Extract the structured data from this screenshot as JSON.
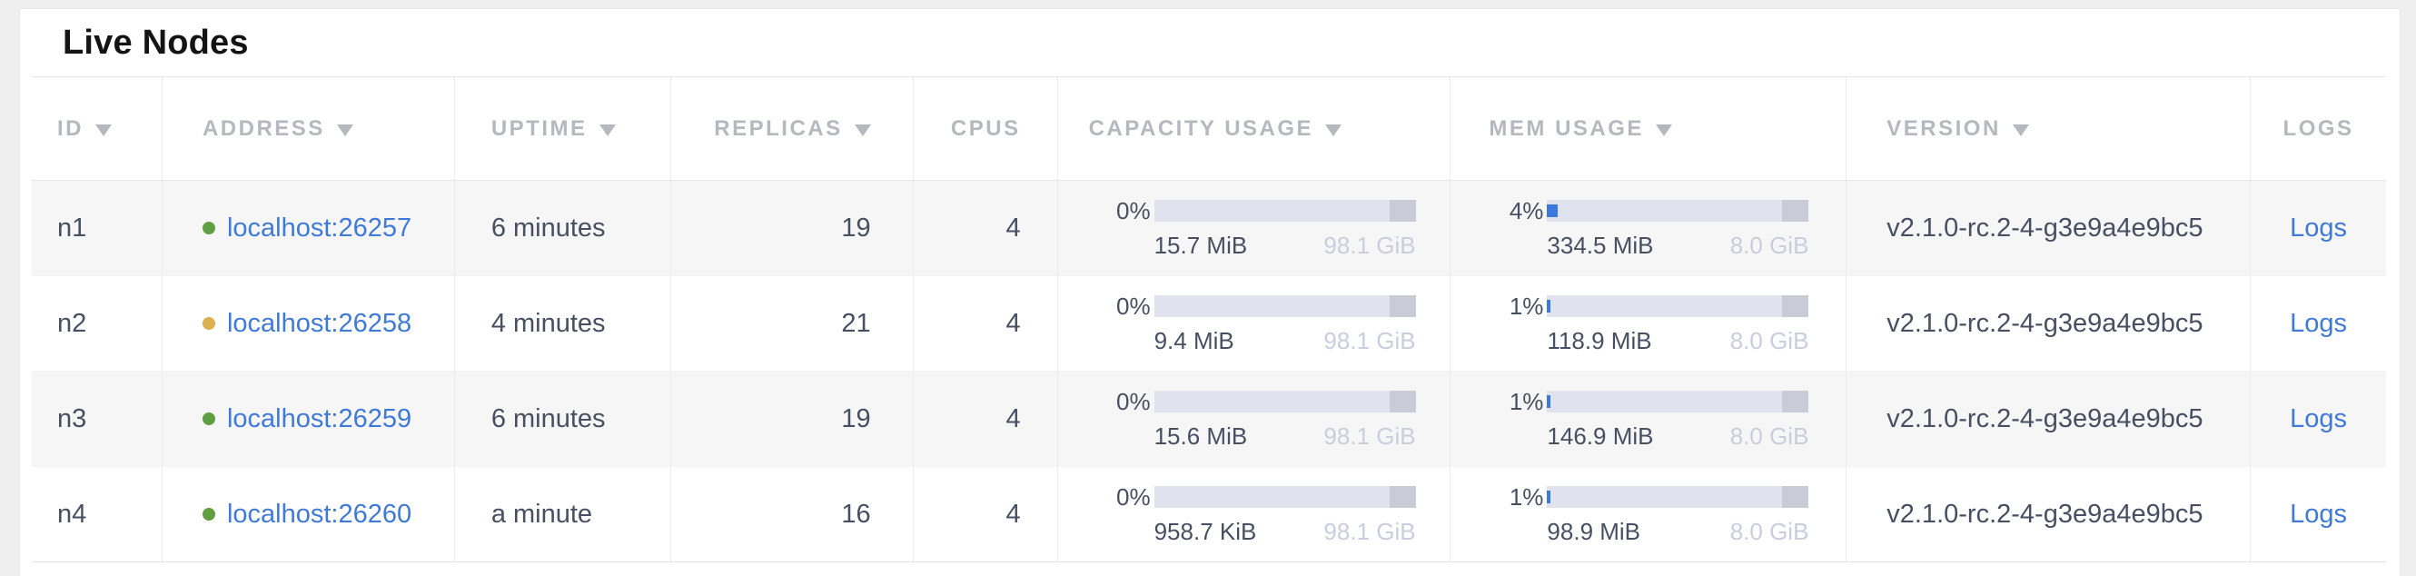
{
  "page": {
    "title": "Live Nodes"
  },
  "colors": {
    "link": "#3f7ad8",
    "status_green": "#5f9e41",
    "status_yellow": "#ddb050",
    "bar_bg": "#e0e3ee",
    "bar_fill": "#3c79dc",
    "bar_reserved": "#c9ccd6",
    "cell_text": "#475062",
    "header_text": "#b5b8bf",
    "total_text": "#c9cede"
  },
  "table": {
    "columns": [
      {
        "key": "id",
        "label": "ID",
        "sortable": true
      },
      {
        "key": "address",
        "label": "ADDRESS",
        "sortable": true
      },
      {
        "key": "uptime",
        "label": "UPTIME",
        "sortable": true
      },
      {
        "key": "replicas",
        "label": "REPLICAS",
        "sortable": true
      },
      {
        "key": "cpus",
        "label": "CPUS",
        "sortable": false
      },
      {
        "key": "capacity",
        "label": "CAPACITY USAGE",
        "sortable": true
      },
      {
        "key": "mem",
        "label": "MEM USAGE",
        "sortable": true
      },
      {
        "key": "version",
        "label": "VERSION",
        "sortable": true
      },
      {
        "key": "logs",
        "label": "LOGS",
        "sortable": false
      }
    ],
    "rows": [
      {
        "id": "n1",
        "status": "green",
        "address": "localhost:26257",
        "uptime": "6 minutes",
        "replicas": "19",
        "cpus": "4",
        "capacity": {
          "percent": "0%",
          "percent_value": 0,
          "used": "15.7 MiB",
          "total": "98.1 GiB"
        },
        "mem": {
          "percent": "4%",
          "percent_value": 4,
          "used": "334.5 MiB",
          "total": "8.0 GiB"
        },
        "version": "v2.1.0-rc.2-4-g3e9a4e9bc5",
        "logs_label": "Logs"
      },
      {
        "id": "n2",
        "status": "yellow",
        "address": "localhost:26258",
        "uptime": "4 minutes",
        "replicas": "21",
        "cpus": "4",
        "capacity": {
          "percent": "0%",
          "percent_value": 0,
          "used": "9.4 MiB",
          "total": "98.1 GiB"
        },
        "mem": {
          "percent": "1%",
          "percent_value": 1,
          "used": "118.9 MiB",
          "total": "8.0 GiB"
        },
        "version": "v2.1.0-rc.2-4-g3e9a4e9bc5",
        "logs_label": "Logs"
      },
      {
        "id": "n3",
        "status": "green",
        "address": "localhost:26259",
        "uptime": "6 minutes",
        "replicas": "19",
        "cpus": "4",
        "capacity": {
          "percent": "0%",
          "percent_value": 0,
          "used": "15.6 MiB",
          "total": "98.1 GiB"
        },
        "mem": {
          "percent": "1%",
          "percent_value": 1,
          "used": "146.9 MiB",
          "total": "8.0 GiB"
        },
        "version": "v2.1.0-rc.2-4-g3e9a4e9bc5",
        "logs_label": "Logs"
      },
      {
        "id": "n4",
        "status": "green",
        "address": "localhost:26260",
        "uptime": "a minute",
        "replicas": "16",
        "cpus": "4",
        "capacity": {
          "percent": "0%",
          "percent_value": 0,
          "used": "958.7 KiB",
          "total": "98.1 GiB"
        },
        "mem": {
          "percent": "1%",
          "percent_value": 1,
          "used": "98.9 MiB",
          "total": "8.0 GiB"
        },
        "version": "v2.1.0-rc.2-4-g3e9a4e9bc5",
        "logs_label": "Logs"
      }
    ]
  }
}
